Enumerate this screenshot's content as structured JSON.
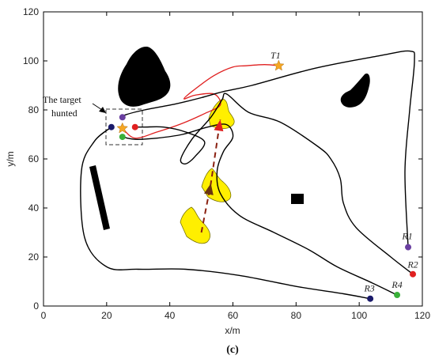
{
  "chart_data": {
    "type": "line",
    "title": "",
    "xlabel": "x/m",
    "ylabel": "y/m",
    "xlim": [
      0,
      120
    ],
    "ylim": [
      0,
      120
    ],
    "xticks": [
      0,
      20,
      40,
      60,
      80,
      100,
      120
    ],
    "yticks": [
      0,
      20,
      40,
      60,
      80,
      100,
      120
    ],
    "grid": false,
    "caption": "(c)",
    "annotation": {
      "text_line1": "The target",
      "text_line2": "hunted"
    },
    "target_label": "T1",
    "target_start": [
      74.5,
      98
    ],
    "target_end": [
      25,
      72.5
    ],
    "robots": [
      {
        "name": "R1",
        "start": [
          115.5,
          24
        ],
        "end": [
          25,
          77
        ],
        "color": "#6a3fa0"
      },
      {
        "name": "R2",
        "start": [
          117,
          13
        ],
        "end": [
          29,
          73
        ],
        "color": "#e02020"
      },
      {
        "name": "R3",
        "start": [
          103.5,
          3
        ],
        "end": [
          21.5,
          73
        ],
        "color": "#1a1a6a"
      },
      {
        "name": "R4",
        "start": [
          112,
          4.5
        ],
        "end": [
          25,
          69
        ],
        "color": "#3ab03a"
      }
    ],
    "series": [
      {
        "name": "",
        "role": "target",
        "color": "#e02020",
        "x": [
          74.5,
          70,
          64,
          60,
          54,
          47.5,
          44.5,
          48,
          54,
          56,
          51,
          44,
          36,
          29,
          25
        ],
        "y": [
          98,
          98.5,
          98,
          97.5,
          94,
          88,
          84.5,
          86,
          86.5,
          82,
          78.5,
          74.5,
          71,
          68.5,
          72.5
        ]
      },
      {
        "name": "",
        "role": "robot",
        "color": "#000000",
        "x": [
          115.5,
          114.5,
          116,
          117.5,
          116,
          106,
          86,
          66,
          57,
          50,
          42,
          32,
          26,
          25
        ],
        "y": [
          24,
          55,
          80,
          100,
          104,
          102,
          97,
          90,
          87.5,
          85,
          82.5,
          80,
          78,
          77
        ]
      },
      {
        "name": "",
        "role": "robot",
        "color": "#000000",
        "x": [
          117,
          110,
          99,
          95,
          94,
          91,
          87,
          75,
          65,
          58,
          56.5,
          53,
          47,
          43.5,
          45,
          48,
          51,
          45,
          38,
          32,
          29
        ],
        "y": [
          13,
          20,
          32,
          42,
          52,
          60,
          65,
          75,
          79,
          86.5,
          84,
          77,
          68,
          60,
          58,
          61,
          67,
          71,
          73,
          73,
          73
        ]
      },
      {
        "name": "",
        "role": "robot",
        "color": "#000000",
        "x": [
          103.5,
          95,
          80,
          62,
          45,
          30,
          20,
          13,
          12,
          16,
          21.5
        ],
        "y": [
          3,
          5,
          8,
          12.5,
          15,
          15,
          16,
          28,
          55,
          67,
          73
        ]
      },
      {
        "name": "",
        "role": "robot",
        "color": "#000000",
        "x": [
          112,
          104,
          93,
          84,
          73,
          62,
          56,
          55,
          57,
          60,
          58,
          52,
          44,
          36,
          29,
          25
        ],
        "y": [
          4.5,
          9.5,
          16,
          23,
          30,
          37,
          46,
          55,
          63,
          69,
          74,
          73,
          70,
          68.5,
          68,
          69
        ]
      }
    ],
    "team_motion": {
      "x": [
        50,
        53,
        56
      ],
      "y": [
        30,
        50,
        76
      ]
    }
  }
}
